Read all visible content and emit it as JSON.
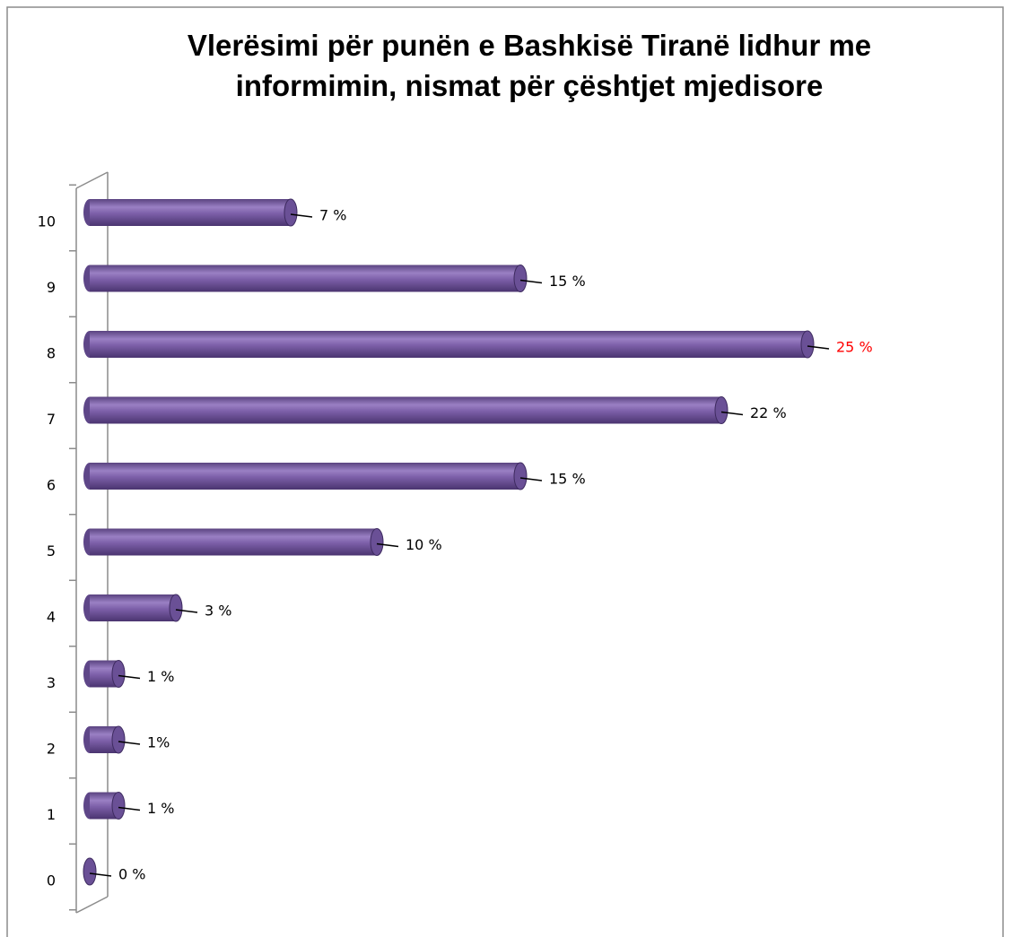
{
  "chart_data": {
    "type": "bar3d_horizontal",
    "title": "Vlerësimi për punën e Bashkisë Tiranë lidhur me informimin, nismat për çështjet mjedisore",
    "categories": [
      "0",
      "1",
      "2",
      "3",
      "4",
      "5",
      "6",
      "7",
      "8",
      "9",
      "10"
    ],
    "values": [
      0,
      1,
      1,
      1,
      3,
      10,
      15,
      22,
      25,
      15,
      7
    ],
    "value_labels": [
      "0 %",
      "1 %",
      "1%",
      "1 %",
      "3 %",
      "10 %",
      "15 %",
      "22 %",
      "25 %",
      "15 %",
      "7 %"
    ],
    "value_label_colors": [
      "#000000",
      "#000000",
      "#000000",
      "#000000",
      "#000000",
      "#000000",
      "#000000",
      "#000000",
      "#ff0000",
      "#000000",
      "#000000"
    ],
    "color": "#7b5ea7"
  }
}
